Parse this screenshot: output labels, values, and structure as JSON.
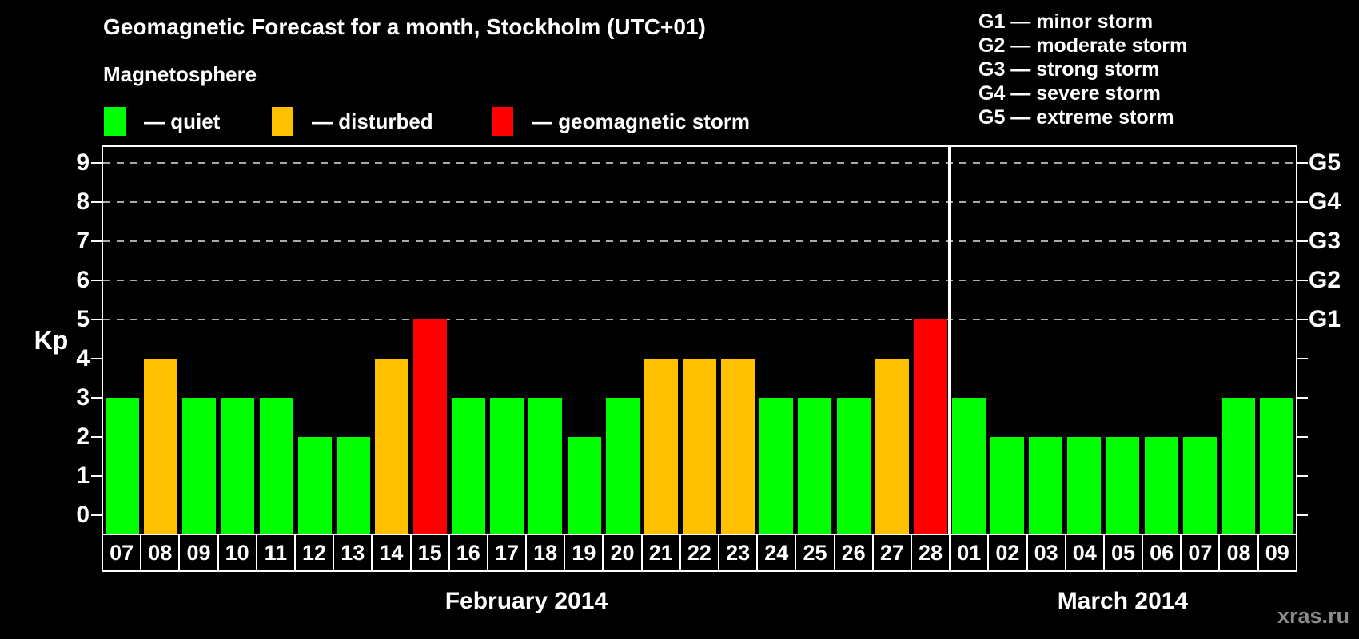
{
  "title": "Geomagnetic Forecast for a month, Stockholm (UTC+01)",
  "magnetosphere": {
    "heading": "Magnetosphere",
    "items": [
      {
        "name": "quiet",
        "label": "— quiet",
        "color": "#00ff00"
      },
      {
        "name": "disturbed",
        "label": "— disturbed",
        "color": "#ffc000"
      },
      {
        "name": "storm",
        "label": "— geomagnetic storm",
        "color": "#ff0000"
      }
    ]
  },
  "storm_scale": {
    "items": [
      "G1 — minor storm",
      "G2 — moderate storm",
      "G3 — strong storm",
      "G4 — severe storm",
      "G5 — extreme storm"
    ]
  },
  "watermark": "xras.ru",
  "chart_data": {
    "type": "bar",
    "title": "Geomagnetic Forecast for a month, Stockholm (UTC+01)",
    "ylabel": "Kp",
    "ylim": [
      0,
      9
    ],
    "yticks": [
      0,
      1,
      2,
      3,
      4,
      5,
      6,
      7,
      8,
      9
    ],
    "dashed_gridlines_at": [
      5,
      6,
      7,
      8,
      9
    ],
    "right_axis_labels": [
      {
        "kp": 5,
        "label": "G1"
      },
      {
        "kp": 6,
        "label": "G2"
      },
      {
        "kp": 7,
        "label": "G3"
      },
      {
        "kp": 8,
        "label": "G4"
      },
      {
        "kp": 9,
        "label": "G5"
      }
    ],
    "color_map": {
      "quiet": "#00ff00",
      "disturbed": "#ffc000",
      "storm": "#ff0000"
    },
    "legend_position": "top",
    "grid": "dashed horizontal lines at Kp 5 through 9",
    "groups": [
      {
        "month": "February 2014",
        "days": [
          "07",
          "08",
          "09",
          "10",
          "11",
          "12",
          "13",
          "14",
          "15",
          "16",
          "17",
          "18",
          "19",
          "20",
          "21",
          "22",
          "23",
          "24",
          "25",
          "26",
          "27",
          "28"
        ],
        "values": [
          3,
          4,
          3,
          3,
          3,
          2,
          2,
          4,
          5,
          3,
          3,
          3,
          2,
          3,
          4,
          4,
          4,
          3,
          3,
          3,
          4,
          5
        ],
        "status": [
          "quiet",
          "disturbed",
          "quiet",
          "quiet",
          "quiet",
          "quiet",
          "quiet",
          "disturbed",
          "storm",
          "quiet",
          "quiet",
          "quiet",
          "quiet",
          "quiet",
          "disturbed",
          "disturbed",
          "disturbed",
          "quiet",
          "quiet",
          "quiet",
          "disturbed",
          "storm"
        ]
      },
      {
        "month": "March 2014",
        "days": [
          "01",
          "02",
          "03",
          "04",
          "05",
          "06",
          "07",
          "08",
          "09"
        ],
        "values": [
          3,
          2,
          2,
          2,
          2,
          2,
          2,
          3,
          3
        ],
        "status": [
          "quiet",
          "quiet",
          "quiet",
          "quiet",
          "quiet",
          "quiet",
          "quiet",
          "quiet",
          "quiet"
        ]
      }
    ]
  }
}
